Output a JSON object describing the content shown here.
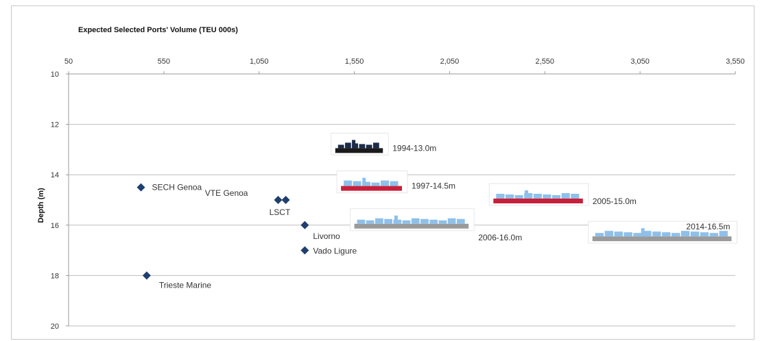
{
  "chart_data": {
    "type": "scatter",
    "title": "Expected Selected Ports' Volume (TEU 000s)",
    "xlabel": "",
    "ylabel": "Depth (m)",
    "xlim": [
      50,
      3550
    ],
    "ylim": [
      10,
      20
    ],
    "y_inverted": true,
    "x_axis_position": "top",
    "x_ticks": [
      50,
      550,
      1050,
      1550,
      2050,
      2550,
      3050,
      3550
    ],
    "x_tick_labels": [
      "50",
      "550",
      "1,050",
      "1,550",
      "2,050",
      "2,550",
      "3,050",
      "3,550"
    ],
    "y_ticks": [
      10,
      12,
      14,
      16,
      18,
      20
    ],
    "y_tick_labels": [
      "10",
      "12",
      "14",
      "16",
      "18",
      "20"
    ],
    "grid": "horizontal",
    "marker_color": "#1f3f6e",
    "series": [
      {
        "points": [
          {
            "x": 430,
            "y": 14.5,
            "label": "SECH Genoa"
          },
          {
            "x": 1150,
            "y": 15.0,
            "label": "VTE Genoa"
          },
          {
            "x": 1190,
            "y": 15.0,
            "label": "LSCT"
          },
          {
            "x": 1290,
            "y": 16.0,
            "label": "Livorno"
          },
          {
            "x": 1290,
            "y": 17.0,
            "label": "Vado Ligure"
          },
          {
            "x": 460,
            "y": 18.0,
            "label": "Trieste Marine"
          }
        ]
      }
    ],
    "ship_annotations": [
      {
        "label": "1994-13.0m",
        "depth": 13.0,
        "x_start": 1450,
        "x_end": 1700,
        "hull_color": "#1a1a1a",
        "deck_color": "#1c2b4a"
      },
      {
        "label": "1997-14.5m",
        "depth": 14.5,
        "x_start": 1480,
        "x_end": 1800,
        "hull_color": "#c8203a",
        "deck_color": "#8ec0ea"
      },
      {
        "label": "2005-15.0m",
        "depth": 15.0,
        "x_start": 2280,
        "x_end": 2750,
        "hull_color": "#c8203a",
        "deck_color": "#8ec0ea"
      },
      {
        "label": "2006-16.0m",
        "depth": 16.0,
        "x_start": 1550,
        "x_end": 2150,
        "hull_color": "#9a9a9a",
        "deck_color": "#8ec0ea"
      },
      {
        "label": "2014-16.5m",
        "depth": 16.5,
        "x_start": 2800,
        "x_end": 3530,
        "hull_color": "#9a9a9a",
        "deck_color": "#8ec0ea"
      }
    ]
  }
}
